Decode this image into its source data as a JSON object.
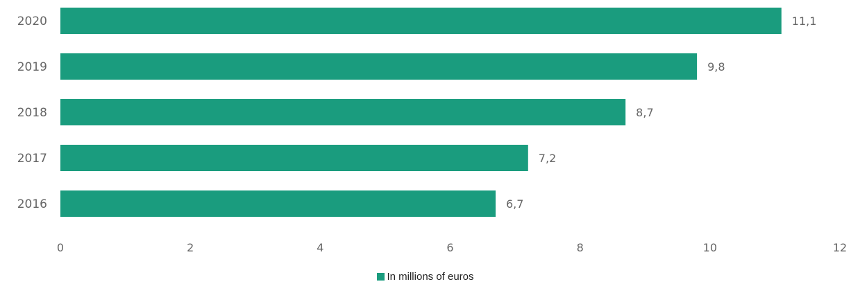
{
  "chart_data": {
    "type": "bar",
    "orientation": "horizontal",
    "categories": [
      "2020",
      "2019",
      "2018",
      "2017",
      "2016"
    ],
    "values": [
      11.1,
      9.8,
      8.7,
      7.2,
      6.7
    ],
    "value_labels": [
      "11,1",
      "9,8",
      "8,7",
      "7,2",
      "6,7"
    ],
    "series": [
      {
        "name": "In millions of euros",
        "values": [
          11.1,
          9.8,
          8.7,
          7.2,
          6.7
        ]
      }
    ],
    "xlim": [
      0,
      12
    ],
    "x_ticks": [
      0,
      2,
      4,
      6,
      8,
      10,
      12
    ],
    "grid": false,
    "legend_position": "bottom-center",
    "bar_color": "#1a9c7e"
  }
}
